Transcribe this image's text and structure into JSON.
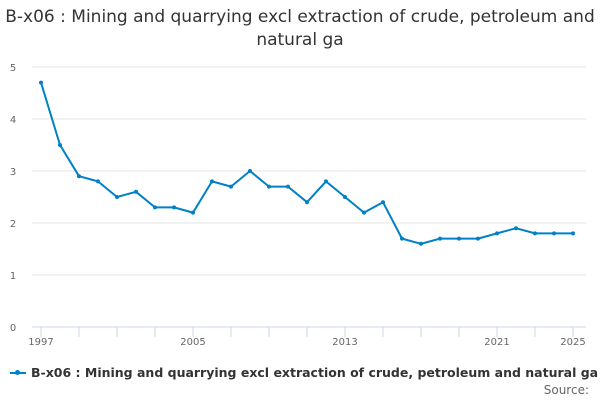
{
  "chart_data": {
    "type": "line",
    "title": "B-x06 : Mining and quarrying excl extraction of crude, petroleum and natural ga",
    "xlabel": "",
    "ylabel": "",
    "x": [
      1997,
      1998,
      1999,
      2000,
      2001,
      2002,
      2003,
      2004,
      2005,
      2006,
      2007,
      2008,
      2009,
      2010,
      2011,
      2012,
      2013,
      2014,
      2015,
      2016,
      2017,
      2018,
      2019,
      2020,
      2021,
      2022,
      2023,
      2024,
      2025
    ],
    "series": [
      {
        "name": "B-x06 : Mining and quarrying excl extraction of crude, petroleum and natural ga",
        "values": [
          4.7,
          3.5,
          2.9,
          2.8,
          2.5,
          2.6,
          2.3,
          2.3,
          2.2,
          2.8,
          2.7,
          3.0,
          2.7,
          2.7,
          2.4,
          2.8,
          2.5,
          2.2,
          2.4,
          1.7,
          1.6,
          1.7,
          1.7,
          1.7,
          1.8,
          1.9,
          1.8,
          1.8,
          1.8
        ],
        "color": "#0080c6"
      }
    ],
    "xticks": [
      "1997",
      "2005",
      "2013",
      "2021",
      "2025"
    ],
    "yticks": [
      "0",
      "1",
      "2",
      "3",
      "4",
      "5"
    ],
    "ylim": [
      0,
      5
    ],
    "xlim": [
      1997,
      2025
    ],
    "grid": true,
    "legend": "bottom-left"
  },
  "source_label": "Source:"
}
